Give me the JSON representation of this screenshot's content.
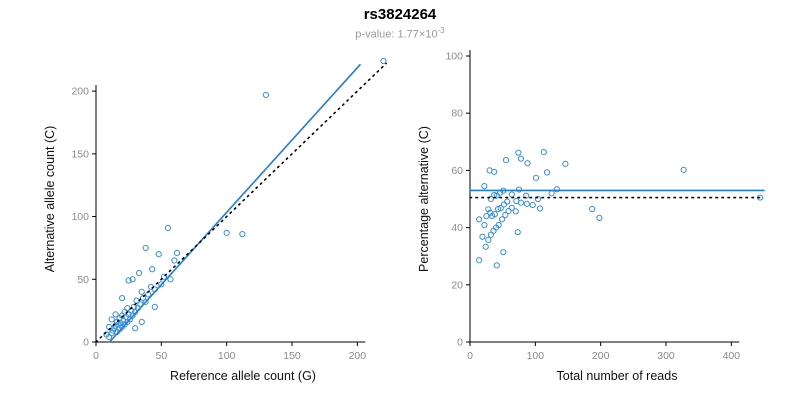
{
  "header": {
    "title": "rs3824264",
    "pvalue": {
      "label": "p-value: 1.77×10",
      "exponent": "-3"
    }
  },
  "style": {
    "point_color": "#3a8fd9",
    "line_color": "#1d7dd8",
    "ref_line_color": "#000000",
    "axis_color": "#000000",
    "tick_label_color": "#8a8a8a",
    "axis_title_color": "#111111"
  },
  "chart_data": [
    {
      "type": "scatter",
      "name": "ref-vs-alt-scatter",
      "xlabel": "Reference allele count (G)",
      "ylabel": "Alternative allele count (C)",
      "xlim": [
        0,
        225
      ],
      "ylim": [
        0,
        228
      ],
      "xticks": [
        0,
        50,
        100,
        150,
        200
      ],
      "yticks": [
        0,
        50,
        100,
        150,
        200
      ],
      "grid": false,
      "points": [
        [
          8,
          6
        ],
        [
          10,
          4
        ],
        [
          10,
          12
        ],
        [
          12,
          7
        ],
        [
          12,
          18
        ],
        [
          13,
          9
        ],
        [
          14,
          11
        ],
        [
          15,
          13
        ],
        [
          15,
          22
        ],
        [
          16,
          8
        ],
        [
          16,
          16
        ],
        [
          17,
          14
        ],
        [
          18,
          10
        ],
        [
          18,
          19
        ],
        [
          19,
          15
        ],
        [
          20,
          12
        ],
        [
          20,
          21
        ],
        [
          20,
          35
        ],
        [
          21,
          17
        ],
        [
          22,
          14
        ],
        [
          22,
          24
        ],
        [
          23,
          20
        ],
        [
          24,
          16
        ],
        [
          24,
          27
        ],
        [
          25,
          22
        ],
        [
          25,
          49
        ],
        [
          26,
          18
        ],
        [
          27,
          25
        ],
        [
          28,
          21
        ],
        [
          28,
          50
        ],
        [
          29,
          28
        ],
        [
          30,
          11
        ],
        [
          30,
          24
        ],
        [
          31,
          33
        ],
        [
          32,
          27
        ],
        [
          33,
          55
        ],
        [
          34,
          30
        ],
        [
          35,
          16
        ],
        [
          35,
          40
        ],
        [
          36,
          35
        ],
        [
          38,
          32
        ],
        [
          38,
          75
        ],
        [
          40,
          38
        ],
        [
          42,
          44
        ],
        [
          43,
          58
        ],
        [
          45,
          28
        ],
        [
          45,
          42
        ],
        [
          48,
          70
        ],
        [
          50,
          46
        ],
        [
          52,
          52
        ],
        [
          55,
          91
        ],
        [
          57,
          50
        ],
        [
          60,
          65
        ],
        [
          62,
          71
        ],
        [
          100,
          87
        ],
        [
          112,
          86
        ],
        [
          130,
          197
        ],
        [
          220,
          224
        ]
      ],
      "lines": [
        {
          "name": "regression-line",
          "x1": 10.4,
          "y1": 0,
          "x2": 202,
          "y2": 221,
          "color": "#1d7dd8",
          "dash": ""
        },
        {
          "name": "identity-line",
          "x1": 0,
          "y1": 0,
          "x2": 222,
          "y2": 222,
          "color": "#000000",
          "dash": "1.5,4.5"
        }
      ]
    },
    {
      "type": "scatter",
      "name": "reads-vs-pct-scatter",
      "xlabel": "Total number of reads",
      "ylabel": "Percentage alternative (C)",
      "xlim": [
        0,
        450
      ],
      "ylim": [
        0,
        100
      ],
      "xticks": [
        0,
        100,
        200,
        300,
        400
      ],
      "yticks": [
        0,
        20,
        40,
        60,
        80,
        100
      ],
      "grid": false,
      "points": [
        [
          14,
          42.9
        ],
        [
          14,
          28.6
        ],
        [
          22,
          54.5
        ],
        [
          19,
          36.8
        ],
        [
          30,
          60
        ],
        [
          22,
          40.9
        ],
        [
          25,
          44
        ],
        [
          28,
          46.4
        ],
        [
          37,
          59.5
        ],
        [
          24,
          33.3
        ],
        [
          32,
          50
        ],
        [
          31,
          45.2
        ],
        [
          28,
          35.7
        ],
        [
          37,
          51.4
        ],
        [
          34,
          44.1
        ],
        [
          32,
          37.5
        ],
        [
          41,
          51.2
        ],
        [
          55,
          63.6
        ],
        [
          38,
          44.7
        ],
        [
          36,
          38.9
        ],
        [
          46,
          52.2
        ],
        [
          43,
          46.5
        ],
        [
          40,
          40
        ],
        [
          51,
          52.9
        ],
        [
          47,
          46.8
        ],
        [
          74,
          66.2
        ],
        [
          44,
          40.9
        ],
        [
          52,
          48.1
        ],
        [
          49,
          42.9
        ],
        [
          78,
          64.1
        ],
        [
          57,
          49.1
        ],
        [
          41,
          26.8
        ],
        [
          54,
          44.4
        ],
        [
          64,
          51.6
        ],
        [
          59,
          45.8
        ],
        [
          88,
          62.5
        ],
        [
          64,
          46.9
        ],
        [
          51,
          31.4
        ],
        [
          75,
          53.3
        ],
        [
          71,
          49.3
        ],
        [
          70,
          45.7
        ],
        [
          113,
          66.4
        ],
        [
          78,
          48.7
        ],
        [
          86,
          51.2
        ],
        [
          101,
          57.4
        ],
        [
          73,
          38.4
        ],
        [
          87,
          48.3
        ],
        [
          118,
          59.3
        ],
        [
          96,
          47.9
        ],
        [
          104,
          50
        ],
        [
          146,
          62.3
        ],
        [
          107,
          46.7
        ],
        [
          125,
          52
        ],
        [
          133,
          53.4
        ],
        [
          187,
          46.5
        ],
        [
          198,
          43.4
        ],
        [
          327,
          60.2
        ],
        [
          444,
          50.5
        ]
      ],
      "lines": [
        {
          "name": "mean-line",
          "x1": 0,
          "y1": 53,
          "x2": 450,
          "y2": 53,
          "color": "#1d7dd8",
          "dash": ""
        },
        {
          "name": "expected-line",
          "x1": 0,
          "y1": 50.5,
          "x2": 450,
          "y2": 50.5,
          "color": "#000000",
          "dash": "1.5,4.5"
        }
      ]
    }
  ]
}
